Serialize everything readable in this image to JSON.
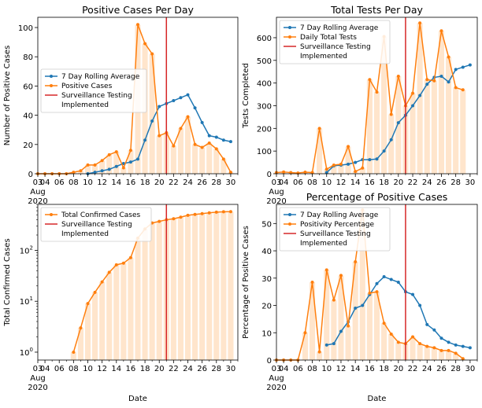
{
  "xaxis": {
    "tick_labels": [
      "03",
      "04",
      "06",
      "08",
      "10",
      "12",
      "14",
      "16",
      "18",
      "20",
      "22",
      "24",
      "26",
      "28",
      "30"
    ],
    "month_label": "Aug",
    "year_label": "2020",
    "date_label": "Date"
  },
  "marker_label": "Surveillance Testing Implemented",
  "colors": {
    "rolling": "#1f77b4",
    "daily": "#ff7f0e",
    "marker": "#d62728",
    "bar": "#ffe5cc"
  },
  "chart_data": [
    {
      "type": "line",
      "title": "Positive Cases Per Day",
      "xlabel": "",
      "ylabel": "Number of Positive Cases",
      "x": [
        "2020-08-03",
        "2020-08-04",
        "2020-08-05",
        "2020-08-06",
        "2020-08-07",
        "2020-08-08",
        "2020-08-09",
        "2020-08-10",
        "2020-08-11",
        "2020-08-12",
        "2020-08-13",
        "2020-08-14",
        "2020-08-15",
        "2020-08-16",
        "2020-08-17",
        "2020-08-18",
        "2020-08-19",
        "2020-08-20",
        "2020-08-21",
        "2020-08-22",
        "2020-08-23",
        "2020-08-24",
        "2020-08-25",
        "2020-08-26",
        "2020-08-27",
        "2020-08-28",
        "2020-08-29",
        "2020-08-30",
        "2020-08-31"
      ],
      "yticks": [
        0,
        20,
        40,
        60,
        80,
        100
      ],
      "ylim": [
        0,
        107
      ],
      "legend_position": "center-left",
      "series": [
        {
          "name": "7 Day Rolling Average",
          "values": [
            null,
            null,
            null,
            null,
            null,
            null,
            null,
            0,
            1,
            2,
            3,
            5,
            7,
            8,
            10,
            23,
            36,
            46,
            48,
            50,
            52,
            54,
            45,
            35,
            26,
            25,
            23,
            22,
            null
          ]
        },
        {
          "name": "Positive Cases",
          "values": [
            0,
            0,
            0,
            0,
            0,
            1,
            2,
            6,
            6,
            9,
            13,
            15,
            4,
            16,
            102,
            89,
            82,
            26,
            28,
            19,
            31,
            39,
            20,
            18,
            21,
            17,
            10,
            1,
            null
          ]
        }
      ],
      "marker_x": "2020-08-21"
    },
    {
      "type": "line",
      "title": "Total Tests Per Day",
      "xlabel": "",
      "ylabel": "Tests Completed",
      "x": [
        "2020-08-03",
        "2020-08-04",
        "2020-08-05",
        "2020-08-06",
        "2020-08-07",
        "2020-08-08",
        "2020-08-09",
        "2020-08-10",
        "2020-08-11",
        "2020-08-12",
        "2020-08-13",
        "2020-08-14",
        "2020-08-15",
        "2020-08-16",
        "2020-08-17",
        "2020-08-18",
        "2020-08-19",
        "2020-08-20",
        "2020-08-21",
        "2020-08-22",
        "2020-08-23",
        "2020-08-24",
        "2020-08-25",
        "2020-08-26",
        "2020-08-27",
        "2020-08-28",
        "2020-08-29",
        "2020-08-30",
        "2020-08-31"
      ],
      "yticks": [
        0,
        100,
        200,
        300,
        400,
        500,
        600
      ],
      "ylim": [
        0,
        690
      ],
      "legend_position": "top-left",
      "series": [
        {
          "name": "7 Day Rolling Average",
          "values": [
            null,
            null,
            null,
            null,
            null,
            null,
            null,
            5,
            35,
            38,
            42,
            50,
            62,
            62,
            65,
            100,
            150,
            225,
            258,
            300,
            345,
            395,
            425,
            430,
            405,
            460,
            470,
            480,
            null
          ]
        },
        {
          "name": "Daily Total Tests",
          "values": [
            5,
            8,
            5,
            3,
            7,
            5,
            200,
            20,
            38,
            42,
            120,
            10,
            25,
            415,
            360,
            605,
            262,
            430,
            300,
            355,
            665,
            415,
            410,
            630,
            515,
            380,
            370,
            null,
            null
          ]
        }
      ],
      "marker_x": "2020-08-21"
    },
    {
      "type": "line",
      "title": "",
      "xlabel": "Date",
      "ylabel": "Total Confirmed Cases",
      "yscale": "log",
      "ytick_labels": [
        "10^0",
        "10^1",
        "10^2"
      ],
      "ylim": [
        0.7,
        800
      ],
      "legend_position": "top-left",
      "x": [
        "2020-08-03",
        "2020-08-04",
        "2020-08-05",
        "2020-08-06",
        "2020-08-07",
        "2020-08-08",
        "2020-08-09",
        "2020-08-10",
        "2020-08-11",
        "2020-08-12",
        "2020-08-13",
        "2020-08-14",
        "2020-08-15",
        "2020-08-16",
        "2020-08-17",
        "2020-08-18",
        "2020-08-19",
        "2020-08-20",
        "2020-08-21",
        "2020-08-22",
        "2020-08-23",
        "2020-08-24",
        "2020-08-25",
        "2020-08-26",
        "2020-08-27",
        "2020-08-28",
        "2020-08-29",
        "2020-08-30",
        "2020-08-31"
      ],
      "series": [
        {
          "name": "Total Confirmed Cases",
          "values": [
            null,
            null,
            null,
            null,
            null,
            1,
            3,
            9,
            15,
            24,
            37,
            52,
            56,
            72,
            174,
            263,
            345,
            371,
            399,
            418,
            449,
            488,
            508,
            526,
            547,
            564,
            574,
            575,
            null
          ]
        }
      ],
      "marker_x": "2020-08-21"
    },
    {
      "type": "line",
      "title": "Percentage of Positive Cases",
      "xlabel": "Date",
      "ylabel": "Percentage of Positive Cases",
      "x": [
        "2020-08-03",
        "2020-08-04",
        "2020-08-05",
        "2020-08-06",
        "2020-08-07",
        "2020-08-08",
        "2020-08-09",
        "2020-08-10",
        "2020-08-11",
        "2020-08-12",
        "2020-08-13",
        "2020-08-14",
        "2020-08-15",
        "2020-08-16",
        "2020-08-17",
        "2020-08-18",
        "2020-08-19",
        "2020-08-20",
        "2020-08-21",
        "2020-08-22",
        "2020-08-23",
        "2020-08-24",
        "2020-08-25",
        "2020-08-26",
        "2020-08-27",
        "2020-08-28",
        "2020-08-29",
        "2020-08-30",
        "2020-08-31"
      ],
      "yticks": [
        0,
        10,
        20,
        30,
        40,
        50
      ],
      "ylim": [
        0,
        57
      ],
      "legend_position": "top-left",
      "series": [
        {
          "name": "7 Day Rolling Average",
          "values": [
            null,
            null,
            null,
            null,
            null,
            null,
            null,
            5.5,
            6,
            10.5,
            14,
            19,
            20,
            24,
            28,
            30.5,
            29.5,
            28.5,
            25,
            24,
            20,
            13,
            11,
            8,
            6.5,
            5.5,
            5,
            4.5,
            null
          ]
        },
        {
          "name": "Positivity Percentage",
          "values": [
            0,
            0,
            0,
            0,
            10,
            28.5,
            3,
            33,
            22,
            31,
            12.5,
            36,
            55,
            24.5,
            25,
            13.5,
            9.5,
            6.5,
            6,
            8.5,
            6,
            5,
            4.5,
            3.5,
            3.5,
            2.5,
            0.5,
            null,
            null
          ]
        }
      ],
      "marker_x": "2020-08-21"
    }
  ]
}
